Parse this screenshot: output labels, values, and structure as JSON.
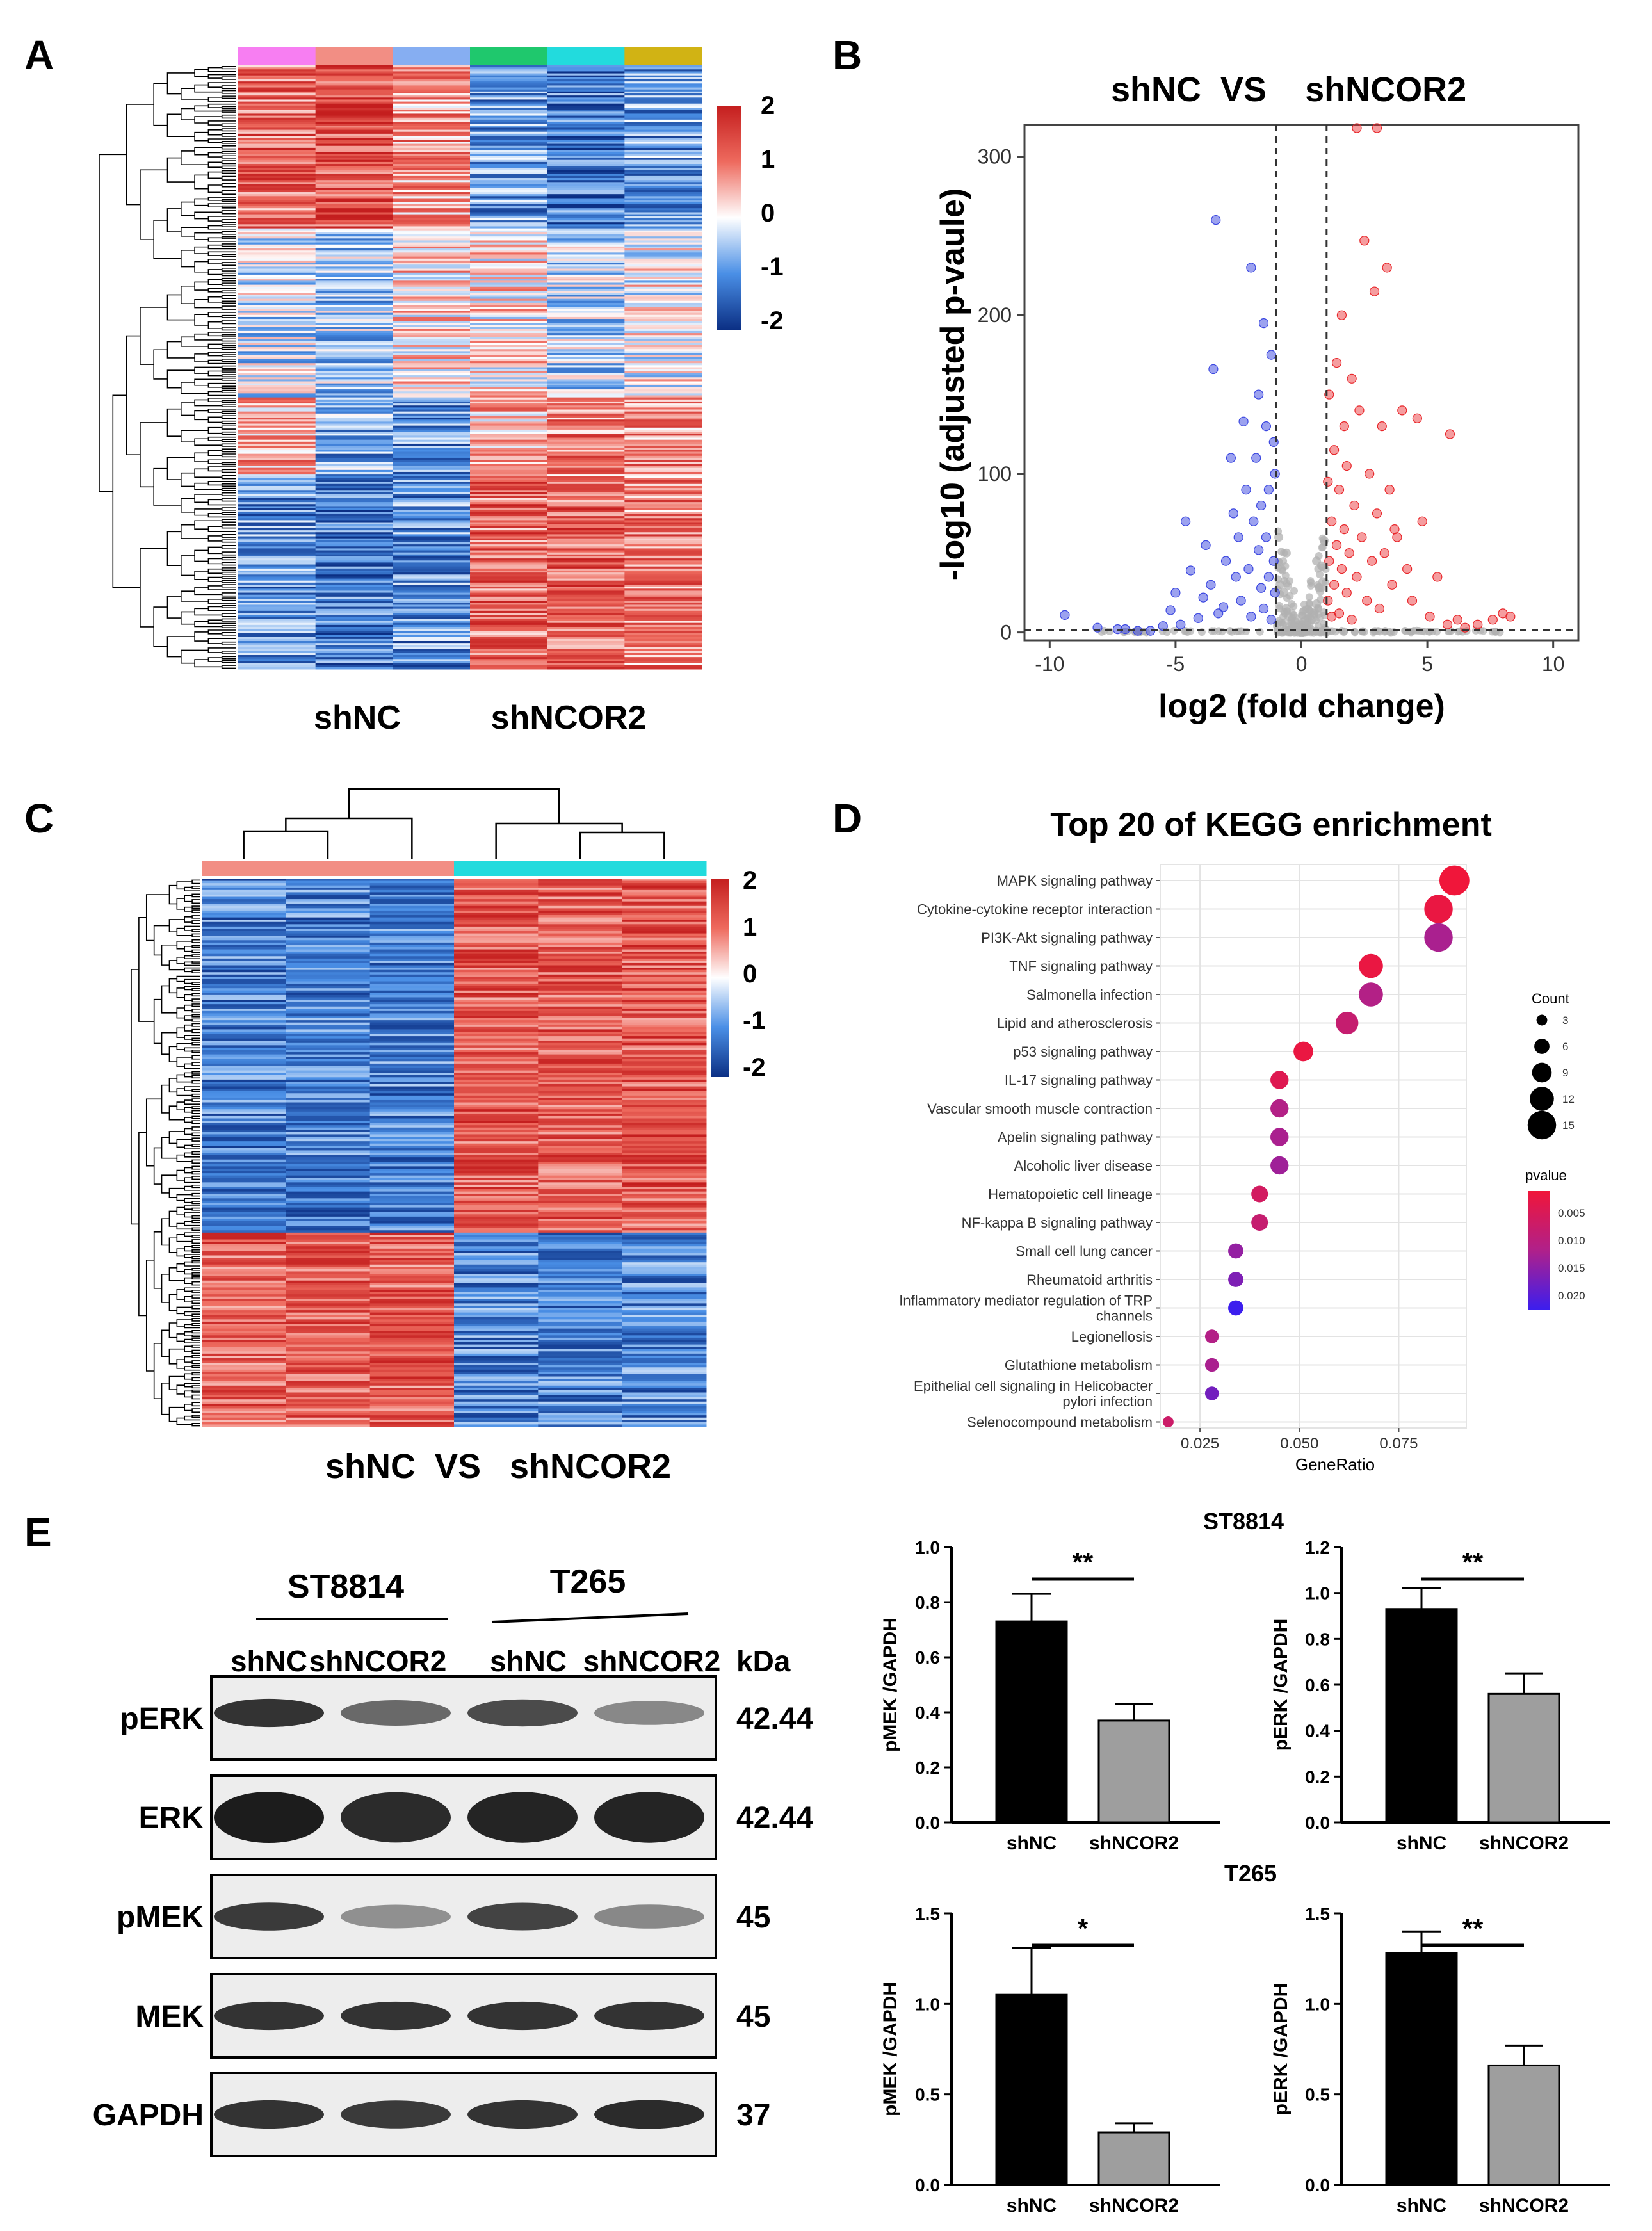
{
  "panel_labels": [
    "A",
    "B",
    "C",
    "D",
    "E"
  ],
  "chart_data": [
    {
      "id": "A",
      "type": "heatmap",
      "xlabel_groups": [
        "shNC",
        "shNCOR2"
      ],
      "columns": 6,
      "column_colors": [
        "#f77ef2",
        "#f28e84",
        "#86aef2",
        "#1fc86d",
        "#22dbdd",
        "#d1b314"
      ],
      "colorbar": {
        "ticks": [
          "2",
          "1",
          "0",
          "-1",
          "-2"
        ],
        "range": [
          -2,
          2
        ]
      },
      "cluster_pattern": "upper ~25% rows high in shNC / low in shNCOR2; lower rows mixed with lower block high in shNCOR2"
    },
    {
      "id": "B",
      "type": "scatter",
      "title": "shNC  VS    shNCOR2",
      "xlabel": "log2 (fold change)",
      "ylabel": "-log10 (adjusted p-vaule)",
      "xticks": [
        "-10",
        "-5",
        "0",
        "5",
        "10"
      ],
      "yticks": [
        "0",
        "100",
        "200",
        "300"
      ],
      "xlim": [
        -11,
        11
      ],
      "ylim": [
        -5,
        320
      ],
      "thresholds": {
        "fold_change": [
          -1,
          1
        ],
        "pvalue_line": 1.3
      },
      "colors": {
        "down": "#3a46e0",
        "up": "#e8262a",
        "ns": "#b0b0b0"
      },
      "down_points": [
        [
          -9.4,
          11
        ],
        [
          -8.1,
          3
        ],
        [
          -7.3,
          2
        ],
        [
          -7.0,
          2
        ],
        [
          -6.5,
          1
        ],
        [
          -6.0,
          1
        ],
        [
          -5.5,
          4
        ],
        [
          -5.2,
          14
        ],
        [
          -5.0,
          25
        ],
        [
          -4.8,
          5
        ],
        [
          -4.6,
          70
        ],
        [
          -4.4,
          39
        ],
        [
          -4.1,
          9
        ],
        [
          -3.9,
          22
        ],
        [
          -3.8,
          55
        ],
        [
          -3.6,
          30
        ],
        [
          -3.5,
          166
        ],
        [
          -3.4,
          260
        ],
        [
          -3.3,
          12
        ],
        [
          -3.1,
          16
        ],
        [
          -3.0,
          45
        ],
        [
          -2.8,
          110
        ],
        [
          -2.7,
          75
        ],
        [
          -2.6,
          35
        ],
        [
          -2.5,
          60
        ],
        [
          -2.4,
          20
        ],
        [
          -2.3,
          133
        ],
        [
          -2.2,
          90
        ],
        [
          -2.1,
          40
        ],
        [
          -2.0,
          230
        ],
        [
          -2.0,
          10
        ],
        [
          -1.9,
          70
        ],
        [
          -1.8,
          110
        ],
        [
          -1.7,
          52
        ],
        [
          -1.7,
          150
        ],
        [
          -1.6,
          28
        ],
        [
          -1.6,
          80
        ],
        [
          -1.5,
          15
        ],
        [
          -1.5,
          195
        ],
        [
          -1.4,
          130
        ],
        [
          -1.4,
          60
        ],
        [
          -1.3,
          35
        ],
        [
          -1.3,
          90
        ],
        [
          -1.2,
          175
        ],
        [
          -1.2,
          8
        ],
        [
          -1.1,
          120
        ],
        [
          -1.1,
          45
        ],
        [
          -1.05,
          100
        ],
        [
          -1.05,
          25
        ]
      ],
      "up_points": [
        [
          1.05,
          20
        ],
        [
          1.05,
          95
        ],
        [
          1.1,
          45
        ],
        [
          1.1,
          150
        ],
        [
          1.2,
          70
        ],
        [
          1.2,
          10
        ],
        [
          1.3,
          115
        ],
        [
          1.3,
          30
        ],
        [
          1.4,
          55
        ],
        [
          1.4,
          170
        ],
        [
          1.5,
          12
        ],
        [
          1.5,
          90
        ],
        [
          1.6,
          40
        ],
        [
          1.6,
          200
        ],
        [
          1.7,
          130
        ],
        [
          1.7,
          65
        ],
        [
          1.8,
          25
        ],
        [
          1.8,
          105
        ],
        [
          1.9,
          50
        ],
        [
          2.0,
          160
        ],
        [
          2.0,
          8
        ],
        [
          2.1,
          80
        ],
        [
          2.2,
          35
        ],
        [
          2.3,
          140
        ],
        [
          2.4,
          60
        ],
        [
          2.5,
          247
        ],
        [
          2.6,
          20
        ],
        [
          2.7,
          100
        ],
        [
          2.8,
          45
        ],
        [
          2.9,
          215
        ],
        [
          3.0,
          75
        ],
        [
          3.1,
          15
        ],
        [
          3.2,
          130
        ],
        [
          3.3,
          50
        ],
        [
          3.4,
          230
        ],
        [
          3.5,
          90
        ],
        [
          3.6,
          30
        ],
        [
          3.8,
          60
        ],
        [
          4.0,
          140
        ],
        [
          4.2,
          40
        ],
        [
          4.4,
          20
        ],
        [
          4.6,
          135
        ],
        [
          4.8,
          70
        ],
        [
          5.1,
          10
        ],
        [
          5.4,
          35
        ],
        [
          5.8,
          5
        ],
        [
          6.2,
          8
        ],
        [
          6.5,
          3
        ],
        [
          7.0,
          5
        ],
        [
          7.6,
          8
        ],
        [
          8.0,
          12
        ],
        [
          8.3,
          10
        ],
        [
          5.9,
          125
        ],
        [
          3.7,
          65
        ],
        [
          2.2,
          318
        ],
        [
          3.0,
          318
        ]
      ],
      "ns_points": [
        [
          -0.9,
          60
        ],
        [
          -0.8,
          40
        ],
        [
          -0.7,
          25
        ],
        [
          -0.6,
          15
        ],
        [
          -0.5,
          10
        ],
        [
          -0.4,
          6
        ],
        [
          -0.3,
          4
        ],
        [
          -0.2,
          2
        ],
        [
          -0.1,
          1
        ],
        [
          0.0,
          0
        ],
        [
          0.1,
          1
        ],
        [
          0.2,
          3
        ],
        [
          0.3,
          5
        ],
        [
          0.4,
          8
        ],
        [
          0.5,
          12
        ],
        [
          0.6,
          18
        ],
        [
          0.7,
          28
        ],
        [
          0.8,
          42
        ],
        [
          0.9,
          58
        ],
        [
          -0.85,
          30
        ],
        [
          0.85,
          32
        ],
        [
          -0.6,
          50
        ],
        [
          0.6,
          45
        ]
      ]
    },
    {
      "id": "C",
      "type": "heatmap",
      "xlabel": "shNC  VS   shNCOR2",
      "columns": 6,
      "column_colors": [
        "#f28e84",
        "#f28e84",
        "#f28e84",
        "#22dbdd",
        "#22dbdd",
        "#22dbdd"
      ],
      "colorbar": {
        "ticks": [
          "2",
          "1",
          "0",
          "-1",
          "-2"
        ],
        "range": [
          -2,
          2
        ]
      },
      "cluster_pattern": "upper ~65% rows low in shNC / high in shNCOR2; lower ~35% rows high in shNC / low in shNCOR2"
    },
    {
      "id": "D",
      "type": "scatter",
      "title": "Top 20 of KEGG enrichment",
      "xlabel": "GeneRatio",
      "xticks": [
        "0.025",
        "0.050",
        "0.075"
      ],
      "xlim": [
        0.015,
        0.092
      ],
      "categories": [
        "MAPK signaling pathway",
        "Cytokine-cytokine receptor interaction",
        "PI3K-Akt signaling pathway",
        "TNF signaling pathway",
        "Salmonella infection",
        "Lipid and atherosclerosis",
        "p53 signaling pathway",
        "IL-17 signaling pathway",
        "Vascular smooth muscle contraction",
        "Apelin signaling pathway",
        "Alcoholic liver disease",
        "Hematopoietic cell lineage",
        "NF-kappa B signaling pathway",
        "Small cell lung cancer",
        "Rheumatoid arthritis",
        "Inflammatory mediator regulation of TRP channels",
        "Legionellosis",
        "Glutathione metabolism",
        "Epithelial cell signaling in Helicobacter pylori infection",
        "Selenocompound metabolism"
      ],
      "category_lines": [
        [
          "MAPK signaling pathway"
        ],
        [
          "Cytokine-cytokine receptor interaction"
        ],
        [
          "PI3K-Akt signaling pathway"
        ],
        [
          "TNF signaling pathway"
        ],
        [
          "Salmonella infection"
        ],
        [
          "Lipid and atherosclerosis"
        ],
        [
          "p53 signaling pathway"
        ],
        [
          "IL-17 signaling pathway"
        ],
        [
          "Vascular smooth muscle contraction"
        ],
        [
          "Apelin signaling pathway"
        ],
        [
          "Alcoholic liver disease"
        ],
        [
          "Hematopoietic cell lineage"
        ],
        [
          "NF-kappa B signaling pathway"
        ],
        [
          "Small cell lung cancer"
        ],
        [
          "Rheumatoid arthritis"
        ],
        [
          "Inflammatory mediator regulation of TRP",
          "channels"
        ],
        [
          "Legionellosis"
        ],
        [
          "Glutathione metabolism"
        ],
        [
          "Epithelial cell signaling in Helicobacter",
          "pylori infection"
        ],
        [
          "Selenocompound metabolism"
        ]
      ],
      "gene_ratio": [
        0.089,
        0.085,
        0.085,
        0.068,
        0.068,
        0.062,
        0.051,
        0.045,
        0.045,
        0.045,
        0.045,
        0.04,
        0.04,
        0.034,
        0.034,
        0.034,
        0.028,
        0.028,
        0.028,
        0.017
      ],
      "count": [
        16,
        15,
        15,
        12,
        12,
        11,
        9,
        8,
        8,
        8,
        8,
        7,
        7,
        6,
        6,
        6,
        5,
        5,
        5,
        3
      ],
      "pvalue": [
        0.001,
        0.002,
        0.012,
        0.002,
        0.011,
        0.008,
        0.002,
        0.004,
        0.011,
        0.012,
        0.013,
        0.006,
        0.008,
        0.014,
        0.016,
        0.022,
        0.011,
        0.012,
        0.017,
        0.007
      ],
      "legend_count": {
        "title": "Count",
        "values": [
          "3",
          "6",
          "9",
          "12",
          "15"
        ]
      },
      "legend_pvalue": {
        "title": "pvalue",
        "values": [
          "0.005",
          "0.010",
          "0.015",
          "0.020"
        ]
      }
    },
    {
      "id": "E-ST8814-pMEK",
      "type": "bar",
      "group": "ST8814",
      "categories": [
        "shNC",
        "shNCOR2"
      ],
      "values": [
        0.73,
        0.37
      ],
      "errors": [
        0.1,
        0.06
      ],
      "ylabel": "pMEK /GAPDH",
      "ylim": [
        0,
        1.0
      ],
      "yticks": [
        "0.0",
        "0.2",
        "0.4",
        "0.6",
        "0.8",
        "1.0"
      ],
      "significance": "**"
    },
    {
      "id": "E-ST8814-pERK",
      "type": "bar",
      "categories": [
        "shNC",
        "shNCOR2"
      ],
      "values": [
        0.93,
        0.56
      ],
      "errors": [
        0.09,
        0.09
      ],
      "ylabel": "pERK /GAPDH",
      "ylim": [
        0,
        1.2
      ],
      "yticks": [
        "0.0",
        "0.2",
        "0.4",
        "0.6",
        "0.8",
        "1.0",
        "1.2"
      ],
      "significance": "**"
    },
    {
      "id": "E-T265-pMEK",
      "type": "bar",
      "group": "T265",
      "categories": [
        "shNC",
        "shNCOR2"
      ],
      "values": [
        1.05,
        0.29
      ],
      "errors": [
        0.26,
        0.05
      ],
      "ylabel": "pMEK /GAPDH",
      "ylim": [
        0,
        1.5
      ],
      "yticks": [
        "0.0",
        "0.5",
        "1.0",
        "1.5"
      ],
      "significance": "*"
    },
    {
      "id": "E-T265-pERK",
      "type": "bar",
      "categories": [
        "shNC",
        "shNCOR2"
      ],
      "values": [
        1.28,
        0.66
      ],
      "errors": [
        0.12,
        0.11
      ],
      "ylabel": "pERK /GAPDH",
      "ylim": [
        0,
        1.5
      ],
      "yticks": [
        "0.0",
        "0.5",
        "1.0",
        "1.5"
      ],
      "significance": "**"
    }
  ],
  "panelA": {
    "group_labels": [
      "shNC",
      "shNCOR2"
    ]
  },
  "western": {
    "cell_lines": [
      "ST8814",
      "T265"
    ],
    "lanes": [
      "shNC",
      "shNCOR2",
      "shNC",
      "shNCOR2"
    ],
    "kda_label": "kDa",
    "blots": [
      {
        "protein": "pERK",
        "kda": "42.44",
        "intensity": [
          0.85,
          0.5,
          0.7,
          0.3
        ]
      },
      {
        "protein": "ERK",
        "kda": "42.44",
        "intensity": [
          1.0,
          0.9,
          0.95,
          0.95
        ]
      },
      {
        "protein": "pMEK",
        "kda": "45",
        "intensity": [
          0.8,
          0.25,
          0.75,
          0.3
        ]
      },
      {
        "protein": "MEK",
        "kda": "45",
        "intensity": [
          0.85,
          0.85,
          0.85,
          0.85
        ]
      },
      {
        "protein": "GAPDH",
        "kda": "37",
        "intensity": [
          0.85,
          0.8,
          0.85,
          0.9
        ]
      }
    ]
  }
}
